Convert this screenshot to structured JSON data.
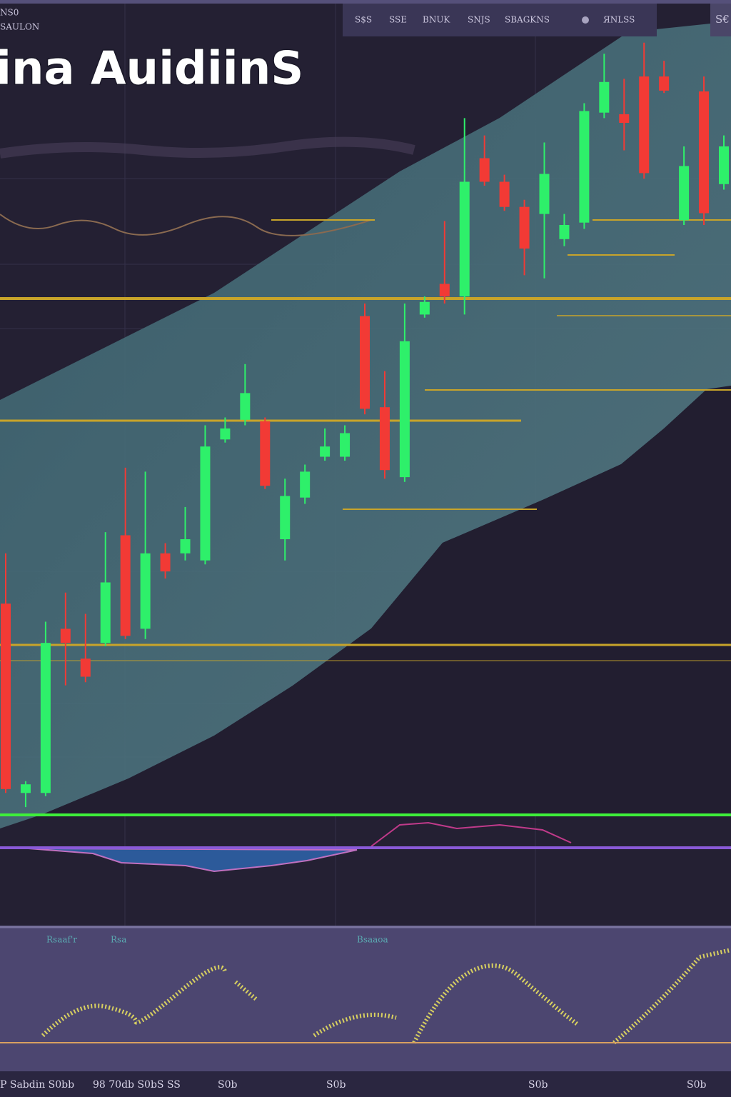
{
  "header": {
    "ticker_lines": [
      "NS0",
      "SAULON"
    ]
  },
  "toolbar": {
    "items": [
      "S$S",
      "SSE",
      "BNUK",
      "SNJS",
      "SBAGKNS",
      "ЯNLSS",
      "S€"
    ]
  },
  "panel_labels": [
    "Rsaaf'r",
    "Rsa",
    "Bsaaoa"
  ],
  "footer": {
    "labels": [
      "P Sabdin S0bb",
      "98 70db S0bS SS",
      "S0b",
      "S0b",
      "S0b",
      "S0b"
    ]
  },
  "chart_data": {
    "type": "candlestick",
    "title": "ina AuidiinS",
    "ylim": [
      0,
      100
    ],
    "up_color": "#2ef06a",
    "down_color": "#f23a35",
    "open": [
      26.8,
      2.7,
      2.7,
      23.6,
      19.8,
      21.8,
      35.5,
      23.6,
      33.2,
      33.2,
      32.3,
      47.7,
      50.2,
      50.0,
      35.0,
      40.3,
      45.5,
      45.5,
      63.4,
      51.8,
      42.9,
      63.6,
      67.5,
      65.9,
      83.5,
      80.5,
      77.3,
      76.4,
      73.2,
      75.3,
      89.3,
      89.1,
      93.9,
      93.9,
      75.6,
      92.0,
      80.2
    ],
    "high": [
      33.2,
      4.2,
      24.5,
      28.2,
      25.5,
      35.9,
      44.1,
      43.6,
      34.5,
      39.1,
      49.5,
      50.5,
      57.3,
      50.5,
      42.7,
      44.5,
      49.1,
      49.5,
      65.0,
      56.4,
      65.0,
      65.9,
      75.5,
      88.6,
      86.4,
      81.4,
      78.2,
      85.5,
      76.4,
      90.5,
      96.8,
      93.6,
      98.2,
      95.9,
      85.0,
      93.9,
      86.4
    ],
    "low": [
      2.7,
      0.9,
      2.3,
      16.4,
      16.8,
      21.4,
      22.3,
      22.3,
      30.0,
      32.3,
      31.8,
      47.3,
      49.5,
      41.4,
      32.3,
      39.5,
      45.0,
      45.0,
      50.9,
      42.7,
      42.3,
      63.2,
      65.0,
      63.6,
      80.0,
      76.8,
      68.6,
      68.2,
      72.3,
      74.5,
      88.6,
      84.5,
      80.9,
      91.8,
      75.0,
      75.0,
      79.5
    ],
    "close": [
      3.2,
      3.8,
      21.8,
      21.8,
      17.5,
      29.5,
      22.7,
      33.2,
      30.9,
      35.0,
      46.8,
      49.1,
      53.6,
      41.8,
      40.5,
      43.6,
      46.8,
      48.5,
      51.6,
      43.8,
      60.2,
      65.2,
      65.9,
      80.5,
      80.5,
      77.3,
      72.0,
      81.5,
      75.0,
      89.5,
      93.2,
      88.0,
      81.6,
      92.1,
      82.5,
      76.5,
      85.0
    ]
  }
}
